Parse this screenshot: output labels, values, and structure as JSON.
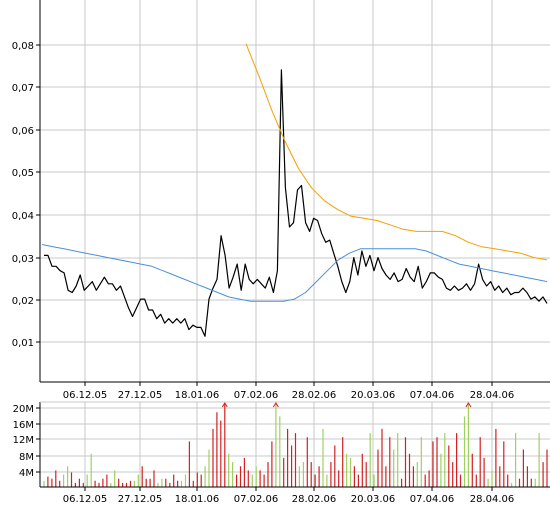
{
  "chart_data": [
    {
      "type": "line",
      "panel": "price",
      "y_axis": {
        "ticks": [
          "0,01",
          "0,02",
          "0,03",
          "0,04",
          "0,05",
          "0,06",
          "0,07",
          "0,08"
        ],
        "ylim": [
          0,
          0.0875
        ]
      },
      "x_axis": {
        "ticks": [
          "06.12.05",
          "27.12.05",
          "18.01.06",
          "07.02.06",
          "28.02.06",
          "20.03.06",
          "07.04.06",
          "28.04.06"
        ]
      },
      "grid": true,
      "colors": {
        "price": "#000000",
        "long_ma": "#4a90d9",
        "short_ma": "#f5a000",
        "grid": "#c8c8c8",
        "axis": "#000000"
      },
      "series": [
        {
          "key": "price",
          "values": [
            0.029,
            0.029,
            0.0265,
            0.0265,
            0.0255,
            0.025,
            0.021,
            0.0205,
            0.022,
            0.0245,
            0.021,
            0.022,
            0.023,
            0.021,
            0.0225,
            0.024,
            0.0225,
            0.0225,
            0.021,
            0.022,
            0.0195,
            0.017,
            0.015,
            0.017,
            0.019,
            0.019,
            0.0165,
            0.0165,
            0.0145,
            0.0155,
            0.0135,
            0.0145,
            0.0135,
            0.0145,
            0.0135,
            0.0145,
            0.012,
            0.013,
            0.0125,
            0.0125,
            0.0105,
            0.019,
            0.0215,
            0.0235,
            0.0335,
            0.029,
            0.0215,
            0.024,
            0.027,
            0.021,
            0.027,
            0.0235,
            0.0225,
            0.0235,
            0.0225,
            0.0215,
            0.024,
            0.0205,
            0.0255,
            0.0715,
            0.0445,
            0.0355,
            0.0365,
            0.044,
            0.045,
            0.0365,
            0.0345,
            0.0375,
            0.037,
            0.034,
            0.032,
            0.0325,
            0.0295,
            0.0265,
            0.023,
            0.0205,
            0.023,
            0.0285,
            0.0245,
            0.03,
            0.0265,
            0.029,
            0.0255,
            0.0285,
            0.026,
            0.0245,
            0.0235,
            0.025,
            0.023,
            0.0235,
            0.026,
            0.024,
            0.023,
            0.0265,
            0.0215,
            0.023,
            0.025,
            0.025,
            0.024,
            0.0235,
            0.0215,
            0.021,
            0.022,
            0.021,
            0.0215,
            0.0225,
            0.021,
            0.0225,
            0.027,
            0.0235,
            0.022,
            0.023,
            0.021,
            0.022,
            0.0205,
            0.0215,
            0.02,
            0.0205,
            0.0205,
            0.0215,
            0.0205,
            0.019,
            0.0195,
            0.0185,
            0.0195,
            0.018
          ]
        },
        {
          "key": "long_ma",
          "values": [
            0.0315,
            0.031,
            0.0305,
            0.03,
            0.0295,
            0.029,
            0.0285,
            0.028,
            0.0275,
            0.027,
            0.0265,
            0.0255,
            0.0245,
            0.0235,
            0.0225,
            0.0215,
            0.0205,
            0.0195,
            0.019,
            0.0185,
            0.0185,
            0.0185,
            0.0185,
            0.019,
            0.0205,
            0.023,
            0.0255,
            0.028,
            0.0295,
            0.0305,
            0.0305,
            0.0305,
            0.0305,
            0.0305,
            0.0305,
            0.03,
            0.029,
            0.028,
            0.027,
            0.0265,
            0.026,
            0.0255,
            0.025,
            0.0245,
            0.024,
            0.0235,
            0.023
          ]
        },
        {
          "key": "short_ma",
          "values": [
            0.0775,
            0.07,
            0.062,
            0.055,
            0.049,
            0.0445,
            0.0415,
            0.0395,
            0.038,
            0.0375,
            0.037,
            0.036,
            0.035,
            0.0345,
            0.0345,
            0.0345,
            0.0335,
            0.032,
            0.031,
            0.0305,
            0.03,
            0.0295,
            0.0285,
            0.028
          ]
        }
      ]
    },
    {
      "type": "bar",
      "panel": "volume",
      "y_axis": {
        "ticks": [
          "4M",
          "8M",
          "12M",
          "16M",
          "20M"
        ],
        "ylim": [
          0,
          20
        ]
      },
      "x_axis": {
        "ticks": [
          "06.12.05",
          "27.12.05",
          "18.01.06",
          "07.02.06",
          "28.02.06",
          "20.03.06",
          "07.04.06",
          "28.04.06"
        ]
      },
      "colors": {
        "down": "#d42020",
        "up": "#a0d060",
        "arrow": "#d42020"
      },
      "unit": "M",
      "values": [
        1.5,
        2.5,
        2,
        4,
        1.5,
        3,
        5,
        3.5,
        1,
        2,
        1,
        3,
        8,
        1.5,
        1,
        2,
        3,
        1,
        4,
        2,
        1,
        1,
        1.5,
        1.5,
        3,
        5,
        2,
        2,
        4,
        1,
        2,
        2,
        1,
        3,
        1.5,
        1.5,
        3,
        11,
        1.5,
        3.5,
        3,
        5,
        9,
        14,
        18,
        16,
        20,
        8,
        6,
        3,
        5,
        7,
        4,
        3,
        5,
        4,
        3,
        6,
        11,
        20,
        17,
        7,
        14,
        10,
        13,
        5,
        6,
        12,
        6,
        3,
        5,
        14,
        3,
        6,
        10,
        4,
        12,
        8,
        7,
        5,
        3,
        8,
        6,
        13,
        3,
        9,
        14,
        5,
        12,
        9,
        13,
        2,
        12,
        8,
        5,
        6,
        12,
        3,
        4,
        11,
        12,
        8,
        13,
        10,
        6,
        13,
        3,
        17,
        20,
        8,
        3,
        12,
        7,
        2,
        4,
        14,
        5,
        11,
        3,
        1,
        13,
        2,
        9,
        5,
        2,
        2,
        13,
        6,
        9
      ]
    }
  ]
}
